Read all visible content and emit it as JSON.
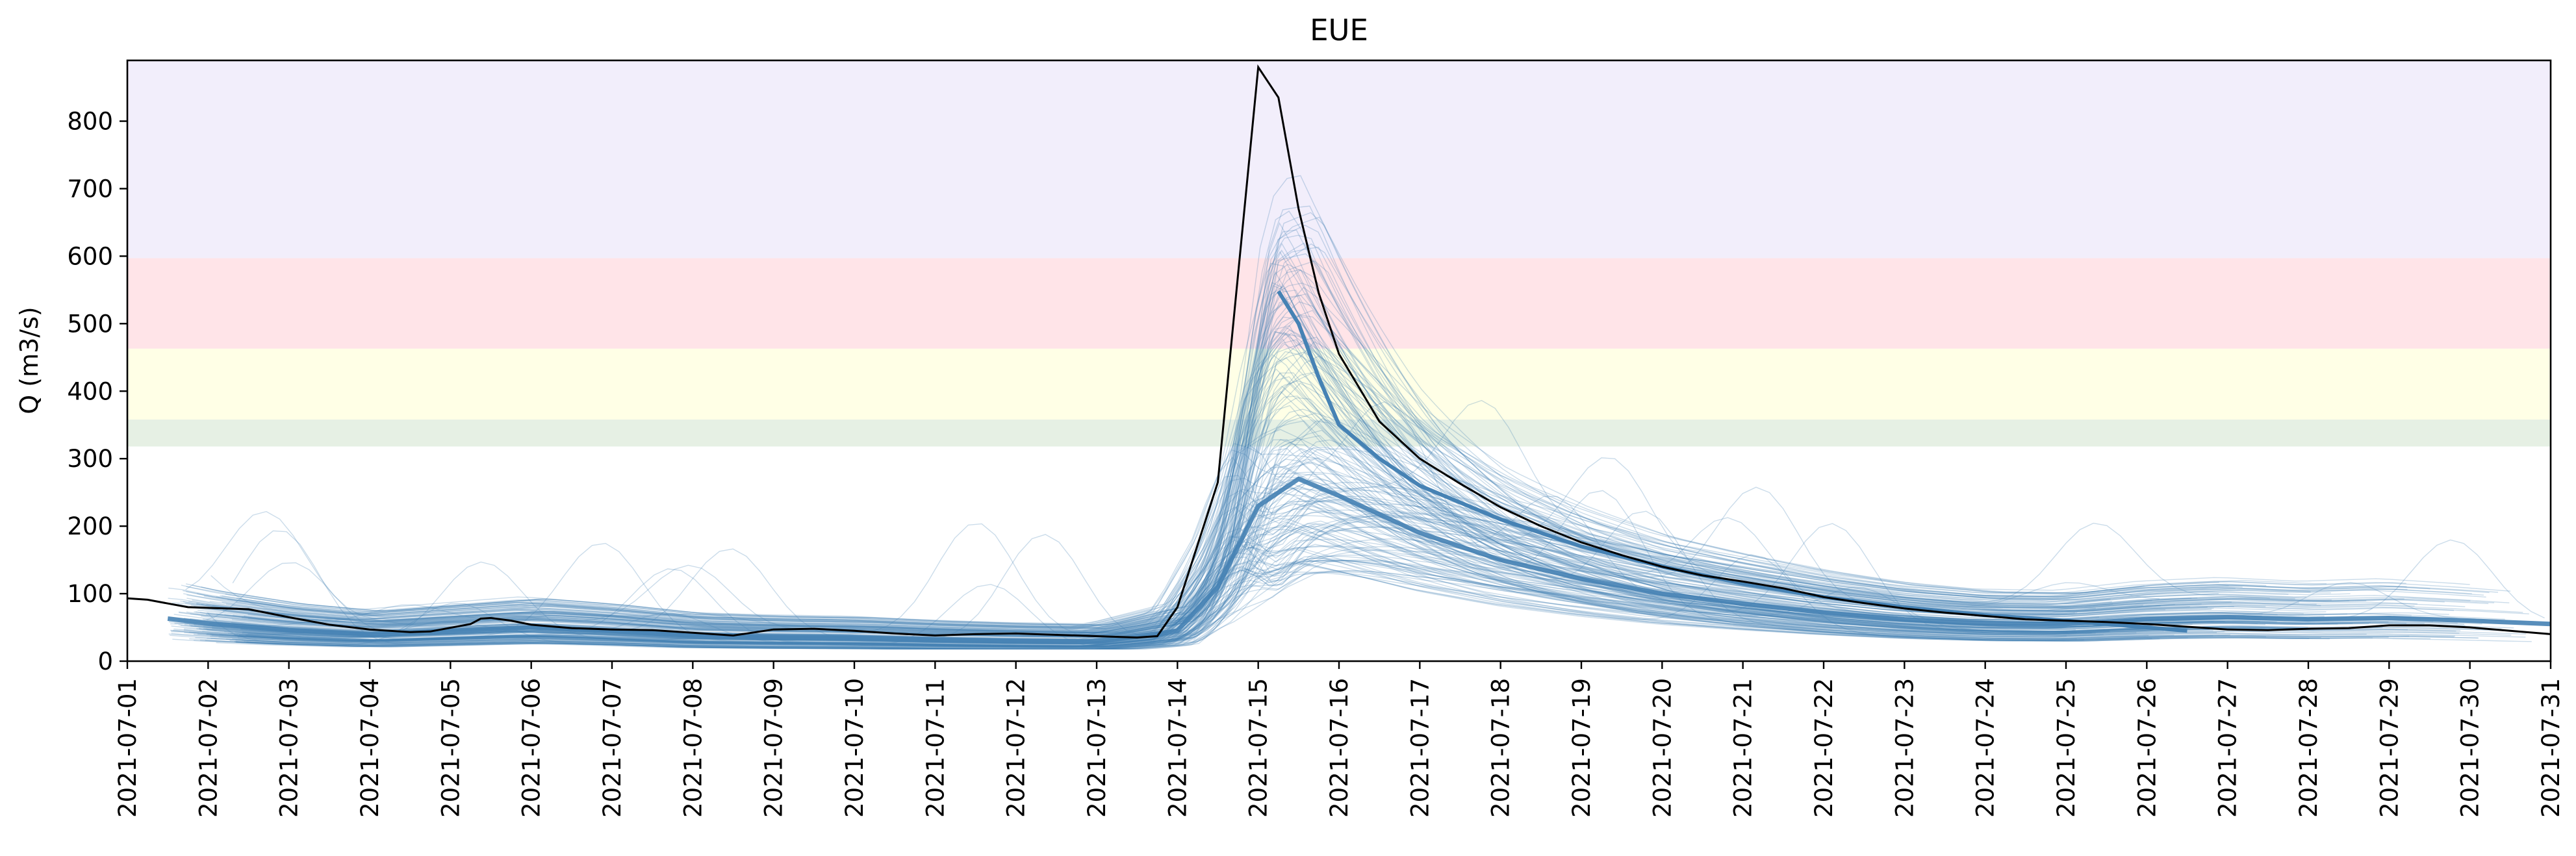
{
  "chart_data": {
    "type": "line",
    "title": "EUE",
    "xlabel": "",
    "ylabel": "Q (m3/s)",
    "xlim": [
      "2021-07-01",
      "2021-07-31"
    ],
    "ylim": [
      0,
      890
    ],
    "x_ticks": [
      "2021-07-01",
      "2021-07-02",
      "2021-07-03",
      "2021-07-04",
      "2021-07-05",
      "2021-07-06",
      "2021-07-07",
      "2021-07-08",
      "2021-07-09",
      "2021-07-10",
      "2021-07-11",
      "2021-07-12",
      "2021-07-13",
      "2021-07-14",
      "2021-07-15",
      "2021-07-16",
      "2021-07-17",
      "2021-07-18",
      "2021-07-19",
      "2021-07-20",
      "2021-07-21",
      "2021-07-22",
      "2021-07-23",
      "2021-07-24",
      "2021-07-25",
      "2021-07-26",
      "2021-07-27",
      "2021-07-28",
      "2021-07-29",
      "2021-07-30",
      "2021-07-31"
    ],
    "y_ticks": [
      0,
      100,
      200,
      300,
      400,
      500,
      600,
      700,
      800
    ],
    "threshold_bands": [
      {
        "from": 318,
        "to": 358,
        "color": "#e6f0e4"
      },
      {
        "from": 358,
        "to": 463,
        "color": "#ffffe6"
      },
      {
        "from": 463,
        "to": 597,
        "color": "#ffe4e8"
      },
      {
        "from": 597,
        "to": 890,
        "color": "#f2eefb"
      }
    ],
    "observed": {
      "color": "#000000",
      "points": [
        [
          "2021-07-01T00:00",
          93
        ],
        [
          "2021-07-01T06:00",
          91
        ],
        [
          "2021-07-01T18:00",
          80
        ],
        [
          "2021-07-02T12:00",
          77
        ],
        [
          "2021-07-03T00:00",
          65
        ],
        [
          "2021-07-03T12:00",
          54
        ],
        [
          "2021-07-04T00:00",
          47
        ],
        [
          "2021-07-04T12:00",
          43
        ],
        [
          "2021-07-04T18:00",
          44
        ],
        [
          "2021-07-05T06:00",
          55
        ],
        [
          "2021-07-05T09:00",
          63
        ],
        [
          "2021-07-05T12:00",
          64
        ],
        [
          "2021-07-05T18:00",
          60
        ],
        [
          "2021-07-06T00:00",
          54
        ],
        [
          "2021-07-06T12:00",
          49
        ],
        [
          "2021-07-07T00:00",
          47
        ],
        [
          "2021-07-07T12:00",
          46
        ],
        [
          "2021-07-08T00:00",
          42
        ],
        [
          "2021-07-08T12:00",
          38
        ],
        [
          "2021-07-09T00:00",
          47
        ],
        [
          "2021-07-09T12:00",
          48
        ],
        [
          "2021-07-10T00:00",
          45
        ],
        [
          "2021-07-10T12:00",
          41
        ],
        [
          "2021-07-11T00:00",
          38
        ],
        [
          "2021-07-11T12:00",
          40
        ],
        [
          "2021-07-12T00:00",
          41
        ],
        [
          "2021-07-12T12:00",
          39
        ],
        [
          "2021-07-13T00:00",
          37
        ],
        [
          "2021-07-13T12:00",
          35
        ],
        [
          "2021-07-13T18:00",
          37
        ],
        [
          "2021-07-14T00:00",
          80
        ],
        [
          "2021-07-14T12:00",
          265
        ],
        [
          "2021-07-15T00:00",
          880
        ],
        [
          "2021-07-15T06:00",
          835
        ],
        [
          "2021-07-15T12:00",
          670
        ],
        [
          "2021-07-15T18:00",
          545
        ],
        [
          "2021-07-16T00:00",
          455
        ],
        [
          "2021-07-16T12:00",
          355
        ],
        [
          "2021-07-17T00:00",
          300
        ],
        [
          "2021-07-17T12:00",
          263
        ],
        [
          "2021-07-18T00:00",
          228
        ],
        [
          "2021-07-18T12:00",
          200
        ],
        [
          "2021-07-19T00:00",
          176
        ],
        [
          "2021-07-19T12:00",
          157
        ],
        [
          "2021-07-20T00:00",
          140
        ],
        [
          "2021-07-20T12:00",
          127
        ],
        [
          "2021-07-21T00:00",
          118
        ],
        [
          "2021-07-21T12:00",
          108
        ],
        [
          "2021-07-22T00:00",
          95
        ],
        [
          "2021-07-22T12:00",
          86
        ],
        [
          "2021-07-23T00:00",
          78
        ],
        [
          "2021-07-23T12:00",
          72
        ],
        [
          "2021-07-24T00:00",
          67
        ],
        [
          "2021-07-24T12:00",
          62
        ],
        [
          "2021-07-25T00:00",
          60
        ],
        [
          "2021-07-25T12:00",
          58
        ],
        [
          "2021-07-26T00:00",
          55
        ],
        [
          "2021-07-26T12:00",
          51
        ],
        [
          "2021-07-27T00:00",
          47
        ],
        [
          "2021-07-27T12:00",
          46
        ],
        [
          "2021-07-28T00:00",
          48
        ],
        [
          "2021-07-28T12:00",
          49
        ],
        [
          "2021-07-29T00:00",
          53
        ],
        [
          "2021-07-29T12:00",
          53
        ],
        [
          "2021-07-30T00:00",
          50
        ],
        [
          "2021-07-30T12:00",
          45
        ],
        [
          "2021-07-31T00:00",
          40
        ]
      ]
    },
    "ensemble": {
      "color": "#4682b4",
      "member_count": 180,
      "median": [
        [
          "2021-07-01T12:00",
          63
        ],
        [
          "2021-07-02T00:00",
          56
        ],
        [
          "2021-07-03T00:00",
          46
        ],
        [
          "2021-07-04T00:00",
          40
        ],
        [
          "2021-07-05T00:00",
          45
        ],
        [
          "2021-07-06T00:00",
          50
        ],
        [
          "2021-07-07T00:00",
          45
        ],
        [
          "2021-07-08T00:00",
          38
        ],
        [
          "2021-07-09T00:00",
          36
        ],
        [
          "2021-07-10T00:00",
          35
        ],
        [
          "2021-07-11T00:00",
          32
        ],
        [
          "2021-07-12T00:00",
          30
        ],
        [
          "2021-07-13T00:00",
          29
        ],
        [
          "2021-07-14T00:00",
          45
        ],
        [
          "2021-07-14T12:00",
          110
        ],
        [
          "2021-07-15T00:00",
          230
        ],
        [
          "2021-07-15T12:00",
          270
        ],
        [
          "2021-07-16T00:00",
          245
        ],
        [
          "2021-07-17T00:00",
          190
        ],
        [
          "2021-07-18T00:00",
          150
        ],
        [
          "2021-07-19T00:00",
          122
        ],
        [
          "2021-07-20T00:00",
          100
        ],
        [
          "2021-07-21T00:00",
          85
        ],
        [
          "2021-07-22T00:00",
          72
        ],
        [
          "2021-07-23T00:00",
          62
        ],
        [
          "2021-07-24T00:00",
          56
        ],
        [
          "2021-07-25T00:00",
          55
        ],
        [
          "2021-07-26T00:00",
          62
        ],
        [
          "2021-07-27T00:00",
          65
        ],
        [
          "2021-07-28T00:00",
          62
        ],
        [
          "2021-07-29T00:00",
          64
        ],
        [
          "2021-07-30T00:00",
          60
        ],
        [
          "2021-07-31T00:00",
          55
        ]
      ],
      "highlight_member": [
        [
          "2021-07-15T06:00",
          548
        ],
        [
          "2021-07-15T12:00",
          500
        ],
        [
          "2021-07-15T18:00",
          420
        ],
        [
          "2021-07-16T00:00",
          350
        ],
        [
          "2021-07-16T12:00",
          300
        ],
        [
          "2021-07-17T00:00",
          260
        ],
        [
          "2021-07-18T00:00",
          210
        ],
        [
          "2021-07-19T00:00",
          170
        ],
        [
          "2021-07-20T00:00",
          140
        ],
        [
          "2021-07-21T00:00",
          115
        ],
        [
          "2021-07-22T00:00",
          95
        ],
        [
          "2021-07-23T00:00",
          80
        ],
        [
          "2021-07-24T00:00",
          68
        ],
        [
          "2021-07-25T00:00",
          60
        ],
        [
          "2021-07-26T00:00",
          50
        ],
        [
          "2021-07-26T12:00",
          45
        ]
      ]
    }
  }
}
